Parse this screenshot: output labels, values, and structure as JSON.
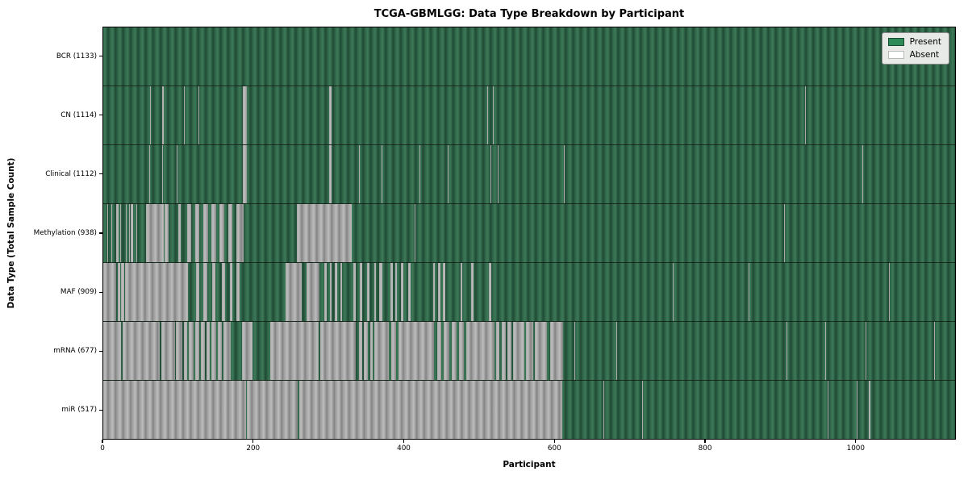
{
  "title": "TCGA-GBMLGG: Data Type Breakdown by Participant",
  "xlabel": "Participant",
  "ylabel": "Data Type (Total Sample Count)",
  "legend": {
    "present_label": "Present",
    "absent_label": "Absent"
  },
  "colors": {
    "present": "#2e8b57",
    "absent": "#ffffff",
    "absent_rendered": "#a3a3a3",
    "legend_bg": "#e7eae7",
    "plot_border": "#000000"
  },
  "chart_data": {
    "type": "heatmap",
    "title": "TCGA-GBMLGG: Data Type Breakdown by Participant",
    "xlabel": "Participant",
    "ylabel": "Data Type (Total Sample Count)",
    "legend_entries": [
      "Present",
      "Absent"
    ],
    "legend_position": "upper right",
    "grid": false,
    "x_axis": {
      "min": 0,
      "max": 1133,
      "ticks": [
        0,
        200,
        400,
        600,
        800,
        1000
      ]
    },
    "value_encoding": {
      "present": "seagreen bar",
      "absent": "white/gray bar"
    },
    "rows": [
      {
        "name": "BCR",
        "label": "BCR (1133)",
        "total": 1133,
        "absent_ranges": []
      },
      {
        "name": "CN",
        "label": "CN (1114)",
        "total": 1114,
        "absent_ranges": [
          [
            62,
            63
          ],
          [
            78,
            80
          ],
          [
            107,
            108
          ],
          [
            127,
            128
          ],
          [
            186,
            191
          ],
          [
            257,
            258
          ],
          [
            300,
            304
          ],
          [
            511,
            512
          ],
          [
            518,
            519
          ],
          [
            933,
            934
          ]
        ]
      },
      {
        "name": "Clinical",
        "label": "Clinical (1112)",
        "total": 1112,
        "absent_ranges": [
          [
            61,
            62
          ],
          [
            78,
            79
          ],
          [
            98,
            99
          ],
          [
            186,
            191
          ],
          [
            257,
            258
          ],
          [
            300,
            304
          ],
          [
            340,
            341
          ],
          [
            370,
            371
          ],
          [
            421,
            422
          ],
          [
            458,
            459
          ],
          [
            515,
            516
          ],
          [
            525,
            526
          ],
          [
            613,
            614
          ],
          [
            1010,
            1011
          ]
        ]
      },
      {
        "name": "Methylation",
        "label": "Methylation (938)",
        "total": 938,
        "absent_ranges": [
          [
            5,
            6
          ],
          [
            11,
            12
          ],
          [
            17,
            20
          ],
          [
            23,
            24
          ],
          [
            30,
            31
          ],
          [
            34,
            35
          ],
          [
            37,
            40
          ],
          [
            44,
            45
          ],
          [
            57,
            80
          ],
          [
            82,
            87
          ],
          [
            100,
            103
          ],
          [
            112,
            117
          ],
          [
            122,
            128
          ],
          [
            133,
            139
          ],
          [
            144,
            150
          ],
          [
            155,
            161
          ],
          [
            166,
            172
          ],
          [
            177,
            187
          ],
          [
            258,
            330
          ],
          [
            414,
            415
          ],
          [
            906,
            907
          ]
        ]
      },
      {
        "name": "MAF",
        "label": "MAF (909)",
        "total": 909,
        "absent_ranges": [
          [
            0,
            17
          ],
          [
            19,
            23
          ],
          [
            24,
            28
          ],
          [
            29,
            113
          ],
          [
            123,
            128
          ],
          [
            133,
            138
          ],
          [
            145,
            149
          ],
          [
            158,
            162
          ],
          [
            168,
            172
          ],
          [
            177,
            181
          ],
          [
            243,
            264
          ],
          [
            270,
            288
          ],
          [
            294,
            297
          ],
          [
            301,
            304
          ],
          [
            308,
            311
          ],
          [
            315,
            318
          ],
          [
            333,
            336
          ],
          [
            341,
            344
          ],
          [
            351,
            354
          ],
          [
            360,
            363
          ],
          [
            367,
            371
          ],
          [
            382,
            385
          ],
          [
            388,
            391
          ],
          [
            396,
            399
          ],
          [
            406,
            409
          ],
          [
            439,
            441
          ],
          [
            445,
            448
          ],
          [
            452,
            455
          ],
          [
            475,
            478
          ],
          [
            489,
            492
          ],
          [
            513,
            516
          ],
          [
            758,
            759
          ],
          [
            858,
            859
          ],
          [
            1045,
            1046
          ]
        ]
      },
      {
        "name": "mRNA",
        "label": "mRNA (677)",
        "total": 677,
        "absent_ranges": [
          [
            0,
            24
          ],
          [
            26,
            75
          ],
          [
            77,
            95
          ],
          [
            97,
            105
          ],
          [
            107,
            112
          ],
          [
            114,
            120
          ],
          [
            122,
            128
          ],
          [
            130,
            135
          ],
          [
            137,
            142
          ],
          [
            144,
            150
          ],
          [
            152,
            158
          ],
          [
            160,
            169
          ],
          [
            185,
            199
          ],
          [
            222,
            287
          ],
          [
            289,
            336
          ],
          [
            340,
            344
          ],
          [
            347,
            352
          ],
          [
            355,
            358
          ],
          [
            361,
            380
          ],
          [
            383,
            390
          ],
          [
            393,
            440
          ],
          [
            444,
            450
          ],
          [
            453,
            460
          ],
          [
            463,
            470
          ],
          [
            473,
            480
          ],
          [
            483,
            520
          ],
          [
            523,
            527
          ],
          [
            530,
            535
          ],
          [
            538,
            543
          ],
          [
            545,
            560
          ],
          [
            562,
            572
          ],
          [
            574,
            590
          ],
          [
            594,
            612
          ],
          [
            627,
            628
          ],
          [
            682,
            683
          ],
          [
            909,
            910
          ],
          [
            960,
            961
          ],
          [
            1014,
            1015
          ],
          [
            1105,
            1106
          ]
        ]
      },
      {
        "name": "miR",
        "label": "miR (517)",
        "total": 517,
        "absent_ranges": [
          [
            0,
            190
          ],
          [
            191,
            259
          ],
          [
            261,
            611
          ],
          [
            665,
            666
          ],
          [
            717,
            718
          ],
          [
            964,
            965
          ],
          [
            1002,
            1003
          ],
          [
            1018,
            1020
          ]
        ]
      }
    ]
  }
}
